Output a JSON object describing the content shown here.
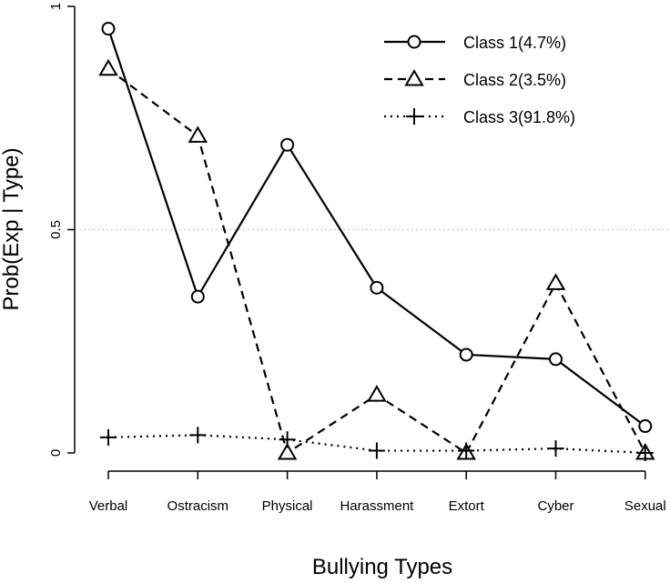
{
  "chart_data": {
    "type": "line",
    "title": "",
    "xlabel": "Bullying Types",
    "ylabel": "Prob(Exp | Type)",
    "ylim": [
      0,
      1
    ],
    "yticks": [
      0,
      0.5,
      1
    ],
    "ytick_labels": [
      "0",
      "0.5",
      "1"
    ],
    "reference_line": 0.5,
    "categories": [
      "Verbal",
      "Ostracism",
      "Physical",
      "Harassment",
      "Extort",
      "Cyber",
      "Sexual"
    ],
    "legend_position": "top-right",
    "series": [
      {
        "name": "Class 1(4.7%)",
        "marker": "circle",
        "line": "solid",
        "values": [
          0.95,
          0.35,
          0.69,
          0.37,
          0.22,
          0.21,
          0.06
        ]
      },
      {
        "name": "Class 2(3.5%)",
        "marker": "triangle",
        "line": "dashed",
        "values": [
          0.86,
          0.71,
          0.0,
          0.13,
          0.0,
          0.38,
          0.0
        ]
      },
      {
        "name": "Class 3(91.8%)",
        "marker": "plus",
        "line": "dotted",
        "values": [
          0.035,
          0.04,
          0.03,
          0.005,
          0.005,
          0.01,
          0.0
        ]
      }
    ]
  }
}
